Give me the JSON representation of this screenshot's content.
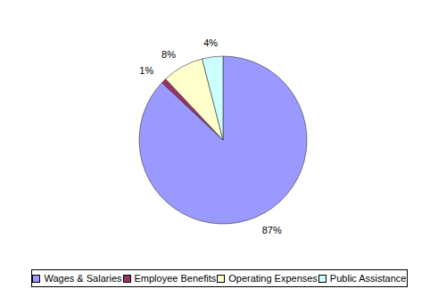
{
  "chart_data": {
    "type": "pie",
    "categories": [
      "Wages & Salaries",
      "Employee Benefits",
      "Operating Expenses",
      "Public Assistance"
    ],
    "values": [
      87,
      1,
      8,
      4
    ],
    "value_labels": [
      "87%",
      "1%",
      "8%",
      "4%"
    ],
    "colors": [
      "#9999ff",
      "#993366",
      "#ffffcc",
      "#ccffff"
    ],
    "data_labels": true,
    "legend": "bottom"
  }
}
